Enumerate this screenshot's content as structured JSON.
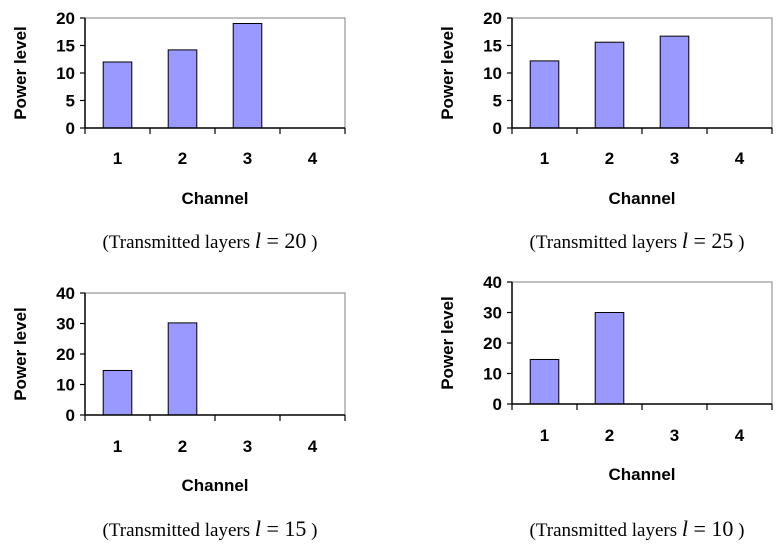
{
  "chart_data": [
    {
      "type": "bar",
      "categories": [
        "1",
        "2",
        "3",
        "4"
      ],
      "values": [
        12,
        14.2,
        19,
        0
      ],
      "xlabel": "Channel",
      "ylabel": "Power level",
      "ylim": [
        0,
        20
      ],
      "yticks": [
        "0",
        "5",
        "10",
        "15",
        "20"
      ],
      "caption_prefix": "(Transmitted layers",
      "caption_var": "l",
      "caption_eq": "=",
      "caption_num": "20",
      "caption_suffix": ")",
      "bar_fill": "#9999ff",
      "bar_stroke": "#000000",
      "grid": false
    },
    {
      "type": "bar",
      "categories": [
        "1",
        "2",
        "3",
        "4"
      ],
      "values": [
        12.2,
        15.6,
        16.7,
        0
      ],
      "xlabel": "Channel",
      "ylabel": "Power level",
      "ylim": [
        0,
        20
      ],
      "yticks": [
        "0",
        "5",
        "10",
        "15",
        "20"
      ],
      "caption_prefix": "(Transmitted layers",
      "caption_var": "l",
      "caption_eq": "=",
      "caption_num": "25",
      "caption_suffix": ")",
      "bar_fill": "#9999ff",
      "bar_stroke": "#000000",
      "grid": false
    },
    {
      "type": "bar",
      "categories": [
        "1",
        "2",
        "3",
        "4"
      ],
      "values": [
        14.6,
        30.2,
        0,
        0
      ],
      "xlabel": "Channel",
      "ylabel": "Power level",
      "ylim": [
        0,
        40
      ],
      "yticks": [
        "0",
        "10",
        "20",
        "30",
        "40"
      ],
      "caption_prefix": "(Transmitted layers",
      "caption_var": "l",
      "caption_eq": "=",
      "caption_num": "15",
      "caption_suffix": ")",
      "bar_fill": "#9999ff",
      "bar_stroke": "#000000",
      "grid": false
    },
    {
      "type": "bar",
      "categories": [
        "1",
        "2",
        "3",
        "4"
      ],
      "values": [
        14.6,
        30,
        0,
        0
      ],
      "xlabel": "Channel",
      "ylabel": "Power level",
      "ylim": [
        0,
        40
      ],
      "yticks": [
        "0",
        "10",
        "20",
        "30",
        "40"
      ],
      "caption_prefix": "(Transmitted layers",
      "caption_var": "l",
      "caption_eq": "=",
      "caption_num": "10",
      "caption_suffix": ")",
      "bar_fill": "#9999ff",
      "bar_stroke": "#000000",
      "grid": false
    }
  ]
}
